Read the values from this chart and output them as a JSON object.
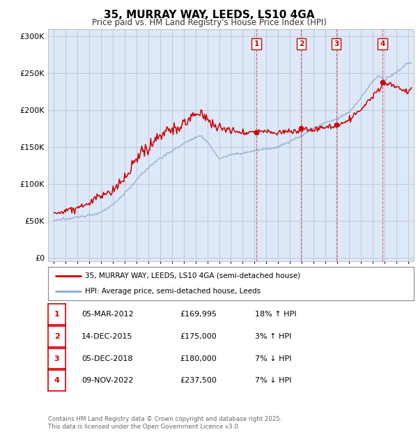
{
  "title": "35, MURRAY WAY, LEEDS, LS10 4GA",
  "subtitle": "Price paid vs. HM Land Registry's House Price Index (HPI)",
  "ylabel_ticks": [
    "£0",
    "£50K",
    "£100K",
    "£150K",
    "£200K",
    "£250K",
    "£300K"
  ],
  "ytick_values": [
    0,
    50000,
    100000,
    150000,
    200000,
    250000,
    300000
  ],
  "ylim": [
    -5000,
    310000
  ],
  "xlim": [
    1994.5,
    2025.5
  ],
  "transactions": [
    {
      "label": "1",
      "year": 2012.17,
      "price": 169995,
      "date": "05-MAR-2012",
      "pct": "18%",
      "dir": "↑"
    },
    {
      "label": "2",
      "year": 2015.95,
      "price": 175000,
      "date": "14-DEC-2015",
      "pct": "3%",
      "dir": "↑"
    },
    {
      "label": "3",
      "year": 2018.92,
      "price": 180000,
      "date": "05-DEC-2018",
      "pct": "7%",
      "dir": "↓"
    },
    {
      "label": "4",
      "year": 2022.85,
      "price": 237500,
      "date": "09-NOV-2022",
      "pct": "7%",
      "dir": "↓"
    }
  ],
  "red_color": "#cc0000",
  "blue_color": "#88aacc",
  "bg_color": "#ffffff",
  "plot_bg_color": "#dde8f8",
  "grid_color": "#bbbbcc",
  "footer": "Contains HM Land Registry data © Crown copyright and database right 2025.\nThis data is licensed under the Open Government Licence v3.0.",
  "legend_line1": "35, MURRAY WAY, LEEDS, LS10 4GA (semi-detached house)",
  "legend_line2": "HPI: Average price, semi-detached house, Leeds",
  "table_rows": [
    [
      "1",
      "05-MAR-2012",
      "£169,995",
      "18% ↑ HPI"
    ],
    [
      "2",
      "14-DEC-2015",
      "£175,000",
      "3% ↑ HPI"
    ],
    [
      "3",
      "05-DEC-2018",
      "£180,000",
      "7% ↓ HPI"
    ],
    [
      "4",
      "09-NOV-2022",
      "£237,500",
      "7% ↓ HPI"
    ]
  ]
}
